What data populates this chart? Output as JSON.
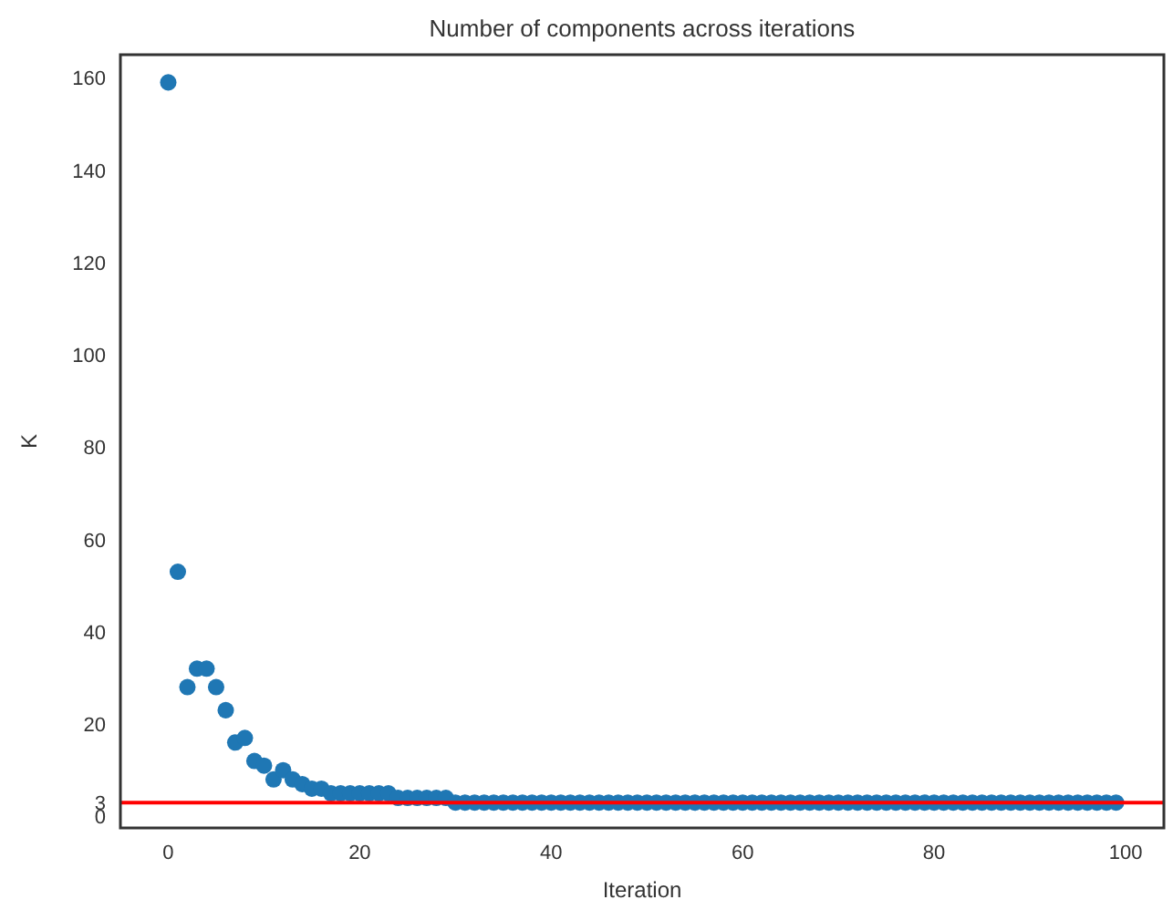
{
  "chart_data": {
    "type": "scatter",
    "title": "Number of components across iterations",
    "xlabel": "Iteration",
    "ylabel": "K",
    "x": [
      0,
      1,
      2,
      3,
      4,
      5,
      6,
      7,
      8,
      9,
      10,
      11,
      12,
      13,
      14,
      15,
      16,
      17,
      18,
      19,
      20,
      21,
      22,
      23,
      24,
      25,
      26,
      27,
      28,
      29,
      30,
      31,
      32,
      33,
      34,
      35,
      36,
      37,
      38,
      39,
      40,
      41,
      42,
      43,
      44,
      45,
      46,
      47,
      48,
      49,
      50,
      51,
      52,
      53,
      54,
      55,
      56,
      57,
      58,
      59,
      60,
      61,
      62,
      63,
      64,
      65,
      66,
      67,
      68,
      69,
      70,
      71,
      72,
      73,
      74,
      75,
      76,
      77,
      78,
      79,
      80,
      81,
      82,
      83,
      84,
      85,
      86,
      87,
      88,
      89,
      90,
      91,
      92,
      93,
      94,
      95,
      96,
      97,
      98,
      99
    ],
    "series": [
      {
        "color": "#1f77b4",
        "values": [
          159,
          53,
          28,
          32,
          32,
          28,
          23,
          16,
          17,
          12,
          11,
          8,
          10,
          8,
          7,
          6,
          6,
          5,
          5,
          5,
          5,
          5,
          5,
          5,
          4,
          4,
          4,
          4,
          4,
          4,
          3,
          3,
          3,
          3,
          3,
          3,
          3,
          3,
          3,
          3,
          3,
          3,
          3,
          3,
          3,
          3,
          3,
          3,
          3,
          3,
          3,
          3,
          3,
          3,
          3,
          3,
          3,
          3,
          3,
          3,
          3,
          3,
          3,
          3,
          3,
          3,
          3,
          3,
          3,
          3,
          3,
          3,
          3,
          3,
          3,
          3,
          3,
          3,
          3,
          3,
          3,
          3,
          3,
          3,
          3,
          3,
          3,
          3,
          3,
          3,
          3,
          3,
          3,
          3,
          3,
          3,
          3,
          3,
          3,
          3
        ]
      }
    ],
    "marker": "circle",
    "xlim": [
      -5,
      104
    ],
    "ylim": [
      -2.5,
      165
    ],
    "xticks": [
      0,
      20,
      40,
      60,
      80,
      100
    ],
    "yticks": [
      0,
      3,
      20,
      40,
      60,
      80,
      100,
      120,
      140,
      160
    ],
    "ref_lines": [
      {
        "axis": "y",
        "value": 3,
        "color": "#ff0000"
      }
    ],
    "grid": false
  }
}
